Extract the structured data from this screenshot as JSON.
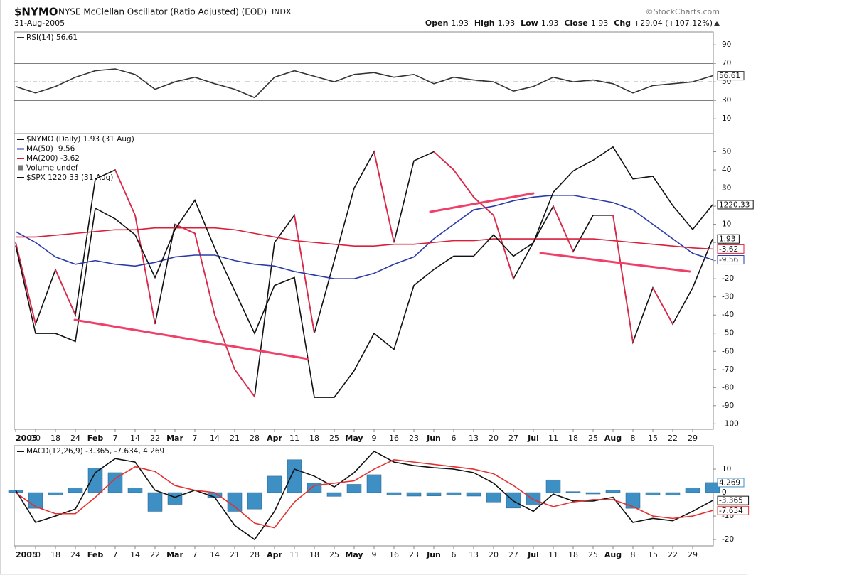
{
  "header": {
    "symbol": "$NYMO",
    "description": "NYSE McClellan Oscillator (Ratio Adjusted) (EOD)",
    "exchange": "INDX",
    "date": "31-Aug-2005",
    "source": "©StockCharts.com",
    "quote": [
      {
        "label": "Open",
        "value": 1.93
      },
      {
        "label": "High",
        "value": 1.93
      },
      {
        "label": "Low",
        "value": 1.93
      },
      {
        "label": "Close",
        "value": 1.93
      },
      {
        "label": "Chg",
        "value": "+29.04 (+107.12%)"
      }
    ]
  },
  "chart_data": [
    {
      "type": "line",
      "ylim": [
        -6,
        104
      ],
      "yticks": [
        10,
        30,
        50,
        70,
        90
      ],
      "ref_lines": [
        {
          "value": 70,
          "dash": "solid"
        },
        {
          "value": 50,
          "dash": "dashdot"
        },
        {
          "value": 30,
          "dash": "solid"
        }
      ],
      "series": [
        {
          "name": "RSI(14) 56.61",
          "color": "#333333",
          "values": [
            45,
            38,
            45,
            55,
            62,
            64,
            58,
            42,
            50,
            55,
            48,
            42,
            33,
            55,
            62,
            56,
            50,
            58,
            60,
            55,
            58,
            48,
            55,
            52,
            50,
            40,
            45,
            55,
            50,
            52,
            48,
            38,
            46,
            48,
            50,
            56.61
          ]
        }
      ]
    },
    {
      "type": "line",
      "categories": [
        "2005",
        "10",
        "18",
        "24",
        "Feb",
        "7",
        "14",
        "22",
        "Mar",
        "7",
        "14",
        "21",
        "28",
        "Apr",
        "11",
        "18",
        "25",
        "May",
        "9",
        "16",
        "23",
        "Jun",
        "6",
        "13",
        "20",
        "27",
        "Jul",
        "11",
        "18",
        "25",
        "Aug",
        "8",
        "15",
        "22",
        "29",
        null
      ],
      "ylim": [
        -103,
        60
      ],
      "yticks": [
        50,
        40,
        30,
        20,
        10,
        0,
        -10,
        -20,
        -30,
        -40,
        -50,
        -60,
        -70,
        -80,
        -90,
        -100
      ],
      "y2lim": [
        1136,
        1247
      ],
      "volume_label": "Volume undef",
      "series": [
        {
          "name": "$NYMO (Daily) 1.93 (31 Aug)",
          "color": "#111111",
          "down_color": "#e0284a",
          "values": [
            0,
            -45,
            -15,
            -40,
            35,
            40,
            15,
            -45,
            10,
            5,
            -40,
            -70,
            -85,
            0,
            15,
            -50,
            -10,
            30,
            50,
            0,
            45,
            50,
            40,
            25,
            15,
            -20,
            0,
            20,
            -5,
            15,
            15,
            -55,
            -25,
            -45,
            -25,
            1.93
          ]
        },
        {
          "name": "MA(50) -9.56",
          "color": "#2b3aa8",
          "values": [
            6,
            0,
            -8,
            -12,
            -10,
            -12,
            -13,
            -11,
            -8,
            -7,
            -7,
            -10,
            -12,
            -13,
            -16,
            -18,
            -20,
            -20,
            -17,
            -12,
            -8,
            2,
            10,
            18,
            20,
            23,
            25,
            26,
            26,
            24,
            22,
            18,
            10,
            2,
            -6,
            -9.56
          ]
        },
        {
          "name": "MA(200) -3.62",
          "color": "#d8203a",
          "values": [
            3,
            3,
            4,
            5,
            6,
            7,
            7,
            8,
            8,
            8,
            8,
            7,
            5,
            3,
            1,
            0,
            -1,
            -2,
            -2,
            -1,
            -1,
            0,
            1,
            1,
            2,
            2,
            2,
            2,
            2,
            2,
            1,
            0,
            -1,
            -2,
            -3,
            -3.62
          ]
        },
        {
          "name": "$SPX 1220.33 (31 Aug)",
          "color": "#111111",
          "axis": "y2",
          "values": [
            1205,
            1172,
            1172,
            1169,
            1219,
            1215,
            1209,
            1193,
            1211,
            1222,
            1204,
            1188,
            1172,
            1190,
            1193,
            1148,
            1148,
            1158,
            1172,
            1166,
            1190,
            1196,
            1201,
            1201,
            1209,
            1201,
            1206,
            1225,
            1233,
            1237,
            1242,
            1230,
            1231,
            1220,
            1211,
            1220.33
          ]
        }
      ]
    },
    {
      "type": "line",
      "legend": "MACD(12,26,9) -3.365, -7.634, 4.269",
      "categories": [
        "2005",
        "10",
        "18",
        "24",
        "Feb",
        "7",
        "14",
        "22",
        "Mar",
        "7",
        "14",
        "21",
        "28",
        "Apr",
        "11",
        "18",
        "25",
        "May",
        "9",
        "16",
        "23",
        "Jun",
        "6",
        "13",
        "20",
        "27",
        "Jul",
        "11",
        "18",
        "25",
        "Aug",
        "8",
        "15",
        "22",
        "29",
        null
      ],
      "ylim": [
        -22.7,
        20
      ],
      "yticks": [
        10,
        0,
        -10,
        -20
      ],
      "series": [
        {
          "style": "histogram",
          "color": "#3d8fc4",
          "values": [
            1,
            -6.7,
            -1,
            2,
            10.5,
            8.5,
            2,
            -8,
            -5,
            0,
            -2,
            -8,
            -7,
            7,
            14,
            4,
            -1.6,
            3.5,
            7.6,
            -1,
            -1.5,
            -1.4,
            -1,
            -1.5,
            -4,
            -6.6,
            -5,
            5.4,
            0.4,
            -0.6,
            1,
            -6.7,
            -1,
            -1,
            2,
            4.269
          ]
        },
        {
          "color": "#111111",
          "values": [
            1,
            -12.7,
            -10,
            -7,
            8.5,
            14.5,
            13,
            1,
            -2,
            1,
            -2,
            -14,
            -20,
            -8,
            10,
            7,
            2.4,
            8.5,
            17.6,
            13,
            11.5,
            10.6,
            10,
            8.5,
            4,
            -3.6,
            -8,
            -0.6,
            -3.6,
            -3.6,
            -2,
            -12.7,
            -11,
            -12,
            -8,
            -3.365
          ]
        },
        {
          "color": "#e53030",
          "values": [
            0,
            -6,
            -9,
            -9,
            -2,
            6,
            11,
            9,
            3,
            1,
            0,
            -6,
            -13,
            -15,
            -4,
            3,
            4,
            5,
            10,
            14,
            13,
            12,
            11,
            10,
            8,
            3,
            -3,
            -6,
            -4,
            -3,
            -3,
            -6,
            -10,
            -11,
            -10,
            -7.634
          ]
        }
      ]
    }
  ]
}
